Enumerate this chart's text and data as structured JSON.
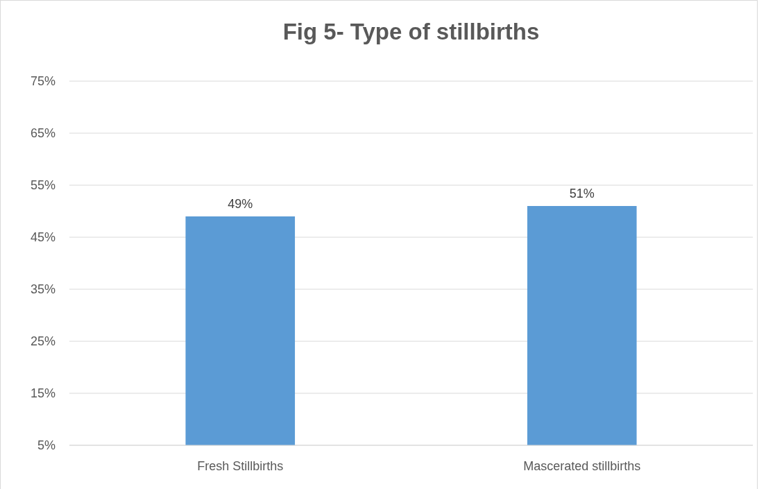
{
  "chart_data": {
    "type": "bar",
    "title": "Fig 5- Type of stillbirths",
    "categories": [
      "Fresh Stillbirths",
      "Mascerated stillbirths"
    ],
    "values": [
      49,
      51
    ],
    "color": "#5b9bd5",
    "value_labels": [
      "49%",
      "51%"
    ],
    "ylim": [
      5,
      75
    ],
    "yticks": [
      {
        "value": 5,
        "label": "5%"
      },
      {
        "value": 15,
        "label": "15%"
      },
      {
        "value": 25,
        "label": "25%"
      },
      {
        "value": 35,
        "label": "35%"
      },
      {
        "value": 45,
        "label": "45%"
      },
      {
        "value": 55,
        "label": "55%"
      },
      {
        "value": 65,
        "label": "65%"
      },
      {
        "value": 75,
        "label": "75%"
      }
    ],
    "grid": "y"
  }
}
